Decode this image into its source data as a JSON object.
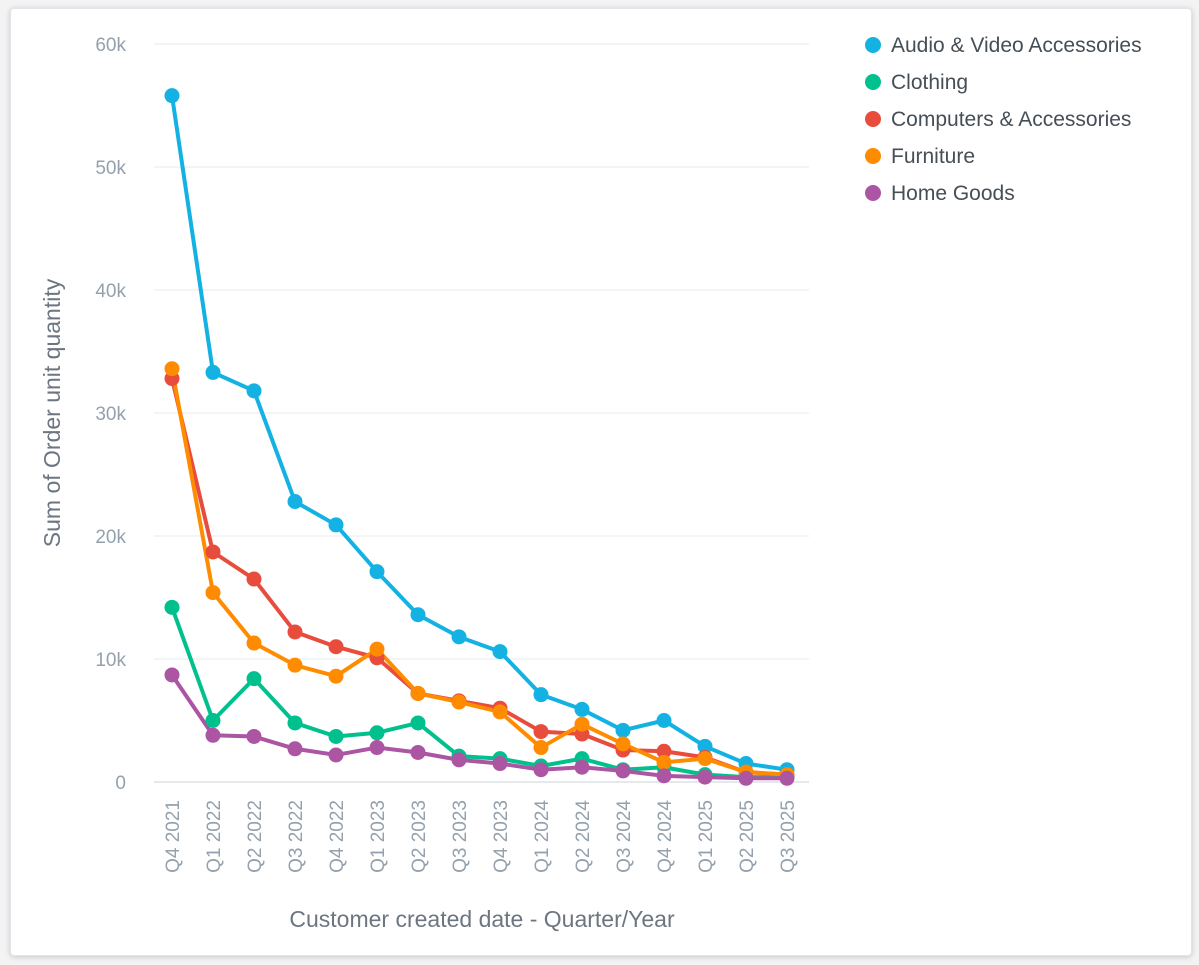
{
  "chart_data": {
    "type": "line",
    "categories": [
      "Q4 2021",
      "Q1 2022",
      "Q2 2022",
      "Q3 2022",
      "Q4 2022",
      "Q1 2023",
      "Q2 2023",
      "Q3 2023",
      "Q4 2023",
      "Q1 2024",
      "Q2 2024",
      "Q3 2024",
      "Q4 2024",
      "Q1 2025",
      "Q2 2025",
      "Q3 2025"
    ],
    "xlabel": "Customer created date - Quarter/Year",
    "ylabel": "Sum of Order unit quantity",
    "ylim": [
      0,
      60000
    ],
    "yticks": [
      0,
      10000,
      20000,
      30000,
      40000,
      50000,
      60000
    ],
    "ytick_labels": [
      "0",
      "10k",
      "20k",
      "30k",
      "40k",
      "50k",
      "60k"
    ],
    "grid": true,
    "legend_position": "top-right",
    "series": [
      {
        "name": "Audio & Video Accessories",
        "color": "#14b2e2",
        "values": [
          55800,
          33300,
          31800,
          22800,
          20900,
          17100,
          13600,
          11800,
          10600,
          7100,
          5900,
          4200,
          5000,
          2900,
          1500,
          1000
        ]
      },
      {
        "name": "Clothing",
        "color": "#00c18d",
        "values": [
          14200,
          5000,
          8400,
          4800,
          3700,
          4000,
          4800,
          2100,
          1900,
          1300,
          1900,
          1000,
          1200,
          600,
          400,
          400
        ]
      },
      {
        "name": "Computers & Accessories",
        "color": "#e84c3d",
        "values": [
          32800,
          18700,
          16500,
          12200,
          11000,
          10100,
          7200,
          6600,
          6000,
          4100,
          3900,
          2600,
          2500,
          2000,
          800,
          600
        ]
      },
      {
        "name": "Furniture",
        "color": "#ff8c00",
        "values": [
          33600,
          15400,
          11300,
          9500,
          8600,
          10800,
          7200,
          6500,
          5700,
          2800,
          4700,
          3100,
          1600,
          1900,
          800,
          600
        ]
      },
      {
        "name": "Home Goods",
        "color": "#ab55a3",
        "values": [
          8700,
          3800,
          3700,
          2700,
          2200,
          2800,
          2400,
          1800,
          1500,
          1000,
          1200,
          900,
          500,
          400,
          300,
          300
        ]
      }
    ]
  }
}
